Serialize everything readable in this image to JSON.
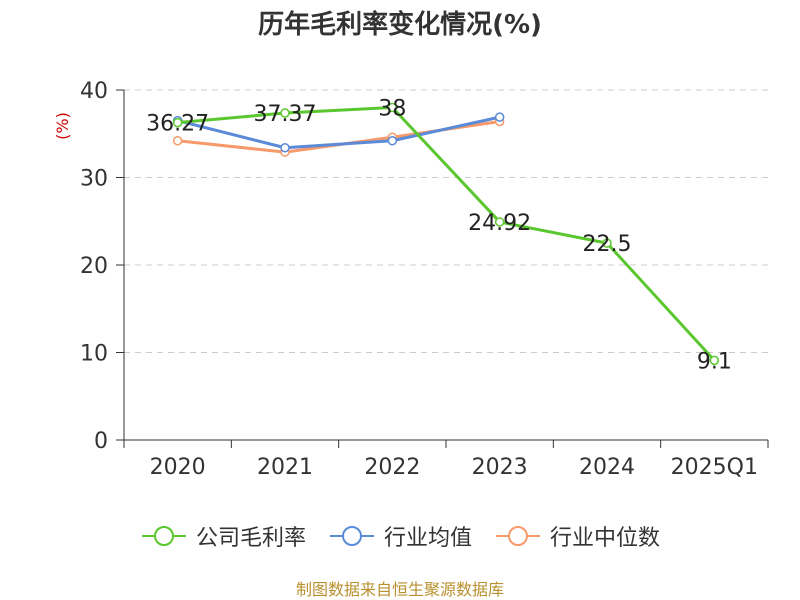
{
  "chart_data": {
    "type": "line",
    "title": "历年毛利率变化情况(%)",
    "ylabel": "(%)",
    "xlabel": "",
    "categories": [
      "2020",
      "2021",
      "2022",
      "2023",
      "2024",
      "2025Q1"
    ],
    "ylim": [
      0,
      40
    ],
    "yticks": [
      "0",
      "10",
      "20",
      "30",
      "40"
    ],
    "grid": true,
    "legend_position": "bottom",
    "series": [
      {
        "name": "公司毛利率",
        "color": "#5ac72e",
        "values": [
          36.27,
          37.37,
          38,
          24.92,
          22.5,
          9.1
        ],
        "labels": [
          "36.27",
          "37.37",
          "38",
          "24.92",
          "22.5",
          "9.1"
        ]
      },
      {
        "name": "行业均值",
        "color": "#5b8ad8",
        "values": [
          36.5,
          33.4,
          34.2,
          36.9,
          null,
          null
        ]
      },
      {
        "name": "行业中位数",
        "color": "#f79a6b",
        "values": [
          34.2,
          32.9,
          34.6,
          36.4,
          null,
          null
        ]
      }
    ]
  },
  "source": "制图数据来自恒生聚源数据库"
}
